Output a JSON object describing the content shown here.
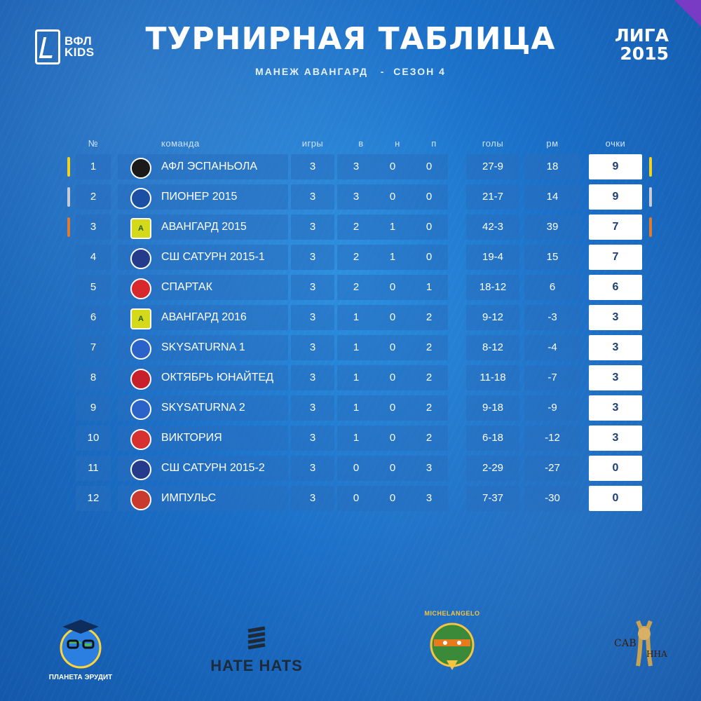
{
  "header": {
    "logo_text": "ВФЛ",
    "logo_text_2": "KIDS",
    "title": "ТУРНИРНАЯ ТАБЛИЦА",
    "subtitle": "МАНЕЖ АВАНГАРД   -  СЕЗОН 4",
    "league_line1": "ЛИГА",
    "league_line2": "2015"
  },
  "columns": {
    "num": "№",
    "team": "команда",
    "games": "игры",
    "wins": "в",
    "draws": "н",
    "losses": "п",
    "goals": "голы",
    "diff": "рм",
    "points": "очки"
  },
  "colors": {
    "gold": "#f2d21b",
    "silver": "#c9ccd3",
    "bronze": "#e07a2e",
    "cell": "#2a6fbf",
    "points_text": "#1a3f77"
  },
  "rows": [
    {
      "pos": "1",
      "team": "АФЛ ЭСПАНЬОЛА",
      "badge_icon": "espanyol-crest-icon",
      "badge_color": "#1a1a1a",
      "badge_text": "",
      "games": "3",
      "w": "3",
      "d": "0",
      "l": "0",
      "goals": "27-9",
      "diff": "18",
      "pts": "9",
      "medal": "gold"
    },
    {
      "pos": "2",
      "team": "ПИОНЕР 2015",
      "badge_icon": "pioneer-crest-icon",
      "badge_color": "#1b4fa3",
      "badge_text": "",
      "games": "3",
      "w": "3",
      "d": "0",
      "l": "0",
      "goals": "21-7",
      "diff": "14",
      "pts": "9",
      "medal": "silver"
    },
    {
      "pos": "3",
      "team": "АВАНГАРД 2015",
      "badge_icon": "avangard-crest-icon",
      "badge_color": "#d4d91a",
      "badge_text": "А",
      "games": "3",
      "w": "2",
      "d": "1",
      "l": "0",
      "goals": "42-3",
      "diff": "39",
      "pts": "7",
      "medal": "bronze"
    },
    {
      "pos": "4",
      "team": "СШ САТУРН 2015-1",
      "badge_icon": "saturn-crest-icon",
      "badge_color": "#233b8a",
      "badge_text": "",
      "games": "3",
      "w": "2",
      "d": "1",
      "l": "0",
      "goals": "19-4",
      "diff": "15",
      "pts": "7",
      "medal": ""
    },
    {
      "pos": "5",
      "team": "СПАРТАК",
      "badge_icon": "spartak-crest-icon",
      "badge_color": "#d8282e",
      "badge_text": "",
      "games": "3",
      "w": "2",
      "d": "0",
      "l": "1",
      "goals": "18-12",
      "diff": "6",
      "pts": "6",
      "medal": ""
    },
    {
      "pos": "6",
      "team": "АВАНГАРД 2016",
      "badge_icon": "avangard-crest-icon",
      "badge_color": "#d4d91a",
      "badge_text": "А",
      "games": "3",
      "w": "1",
      "d": "0",
      "l": "2",
      "goals": "9-12",
      "diff": "-3",
      "pts": "3",
      "medal": ""
    },
    {
      "pos": "7",
      "team": "SKYSATURNA 1",
      "badge_icon": "skysaturna-crest-icon",
      "badge_color": "#2b62c9",
      "badge_text": "",
      "games": "3",
      "w": "1",
      "d": "0",
      "l": "2",
      "goals": "8-12",
      "diff": "-4",
      "pts": "3",
      "medal": ""
    },
    {
      "pos": "8",
      "team": "ОКТЯБРЬ ЮНАЙТЕД",
      "badge_icon": "october-crest-icon",
      "badge_color": "#c8202a",
      "badge_text": "",
      "games": "3",
      "w": "1",
      "d": "0",
      "l": "2",
      "goals": "11-18",
      "diff": "-7",
      "pts": "3",
      "medal": ""
    },
    {
      "pos": "9",
      "team": "SKYSATURNA 2",
      "badge_icon": "skysaturna-crest-icon",
      "badge_color": "#2b62c9",
      "badge_text": "",
      "games": "3",
      "w": "1",
      "d": "0",
      "l": "2",
      "goals": "9-18",
      "diff": "-9",
      "pts": "3",
      "medal": ""
    },
    {
      "pos": "10",
      "team": "ВИКТОРИЯ",
      "badge_icon": "victoria-crest-icon",
      "badge_color": "#d63030",
      "badge_text": "",
      "games": "3",
      "w": "1",
      "d": "0",
      "l": "2",
      "goals": "6-18",
      "diff": "-12",
      "pts": "3",
      "medal": ""
    },
    {
      "pos": "11",
      "team": "СШ САТУРН 2015-2",
      "badge_icon": "saturn-crest-icon",
      "badge_color": "#233b8a",
      "badge_text": "",
      "games": "3",
      "w": "0",
      "d": "0",
      "l": "3",
      "goals": "2-29",
      "diff": "-27",
      "pts": "0",
      "medal": ""
    },
    {
      "pos": "12",
      "team": "ИМПУЛЬС",
      "badge_icon": "impulse-crest-icon",
      "badge_color": "#c9392e",
      "badge_text": "",
      "games": "3",
      "w": "0",
      "d": "0",
      "l": "3",
      "goals": "7-37",
      "diff": "-30",
      "pts": "0",
      "medal": ""
    }
  ],
  "sponsors": {
    "planeta": "ПЛАНЕТА ЭРУДИТ",
    "hatehats": "HATE HATS",
    "michelangelo": "MICHELANGELO",
    "savanna_1": "САВ",
    "savanna_2": "ННА"
  }
}
